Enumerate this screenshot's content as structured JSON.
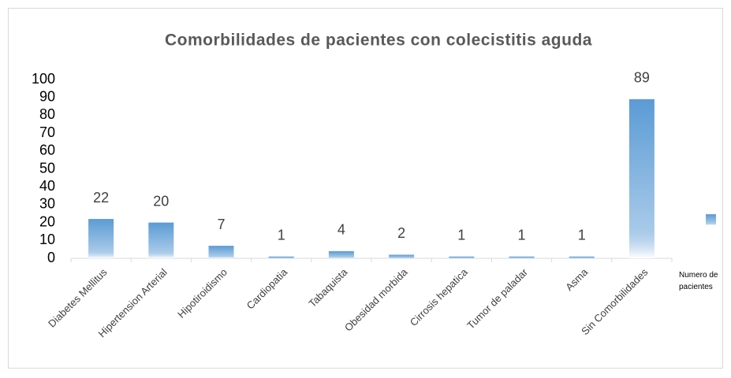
{
  "chart_data": {
    "type": "bar",
    "title": "Comorbilidades de pacientes con colecistitis aguda",
    "categories": [
      "Diabetes Mellitus",
      "Hipertension Arterial",
      "Hipotiroidismo",
      "Cardiopatia",
      "Tabaquista",
      "Obesidad morbida",
      "Cirrosis hepatica",
      "Tumor de paladar",
      "Asma",
      "Sin Comorbilidades"
    ],
    "series": [
      {
        "name": "Numero de pacientes",
        "color": "#5b9bd5",
        "values": [
          22,
          20,
          7,
          1,
          4,
          2,
          1,
          1,
          1,
          89
        ]
      }
    ],
    "ylim": [
      0,
      100
    ],
    "yticks": [
      0,
      10,
      20,
      30,
      40,
      50,
      60,
      70,
      80,
      90,
      100
    ],
    "grid": false,
    "legend": "right"
  }
}
